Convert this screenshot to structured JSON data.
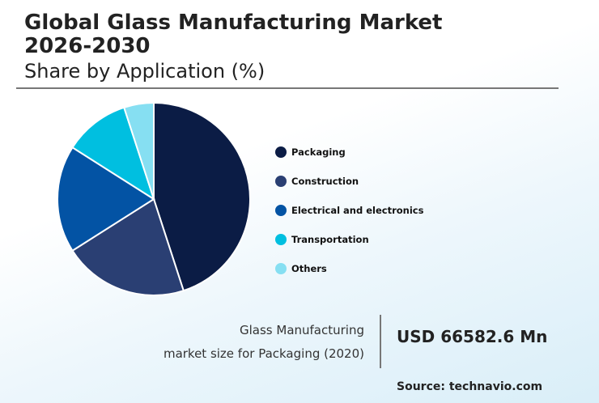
{
  "title_line1": "Global Glass Manufacturing Market",
  "title_line2": "2026-2030",
  "subtitle": "Share by Application (%)",
  "chart_data": {
    "type": "pie",
    "categories": [
      "Packaging",
      "Construction",
      "Electrical and electronics",
      "Transportation",
      "Others"
    ],
    "values": [
      45,
      21,
      18,
      11,
      5
    ],
    "colors": [
      "#0b1c45",
      "#2a3f73",
      "#0353a4",
      "#00bfe0",
      "#86dff2"
    ],
    "legend_position": "right"
  },
  "footer": {
    "label_line1": "Glass Manufacturing",
    "label_line2": "market size for Packaging (2020)",
    "value": "USD 66582.6 Mn",
    "source": "Source: technavio.com"
  }
}
